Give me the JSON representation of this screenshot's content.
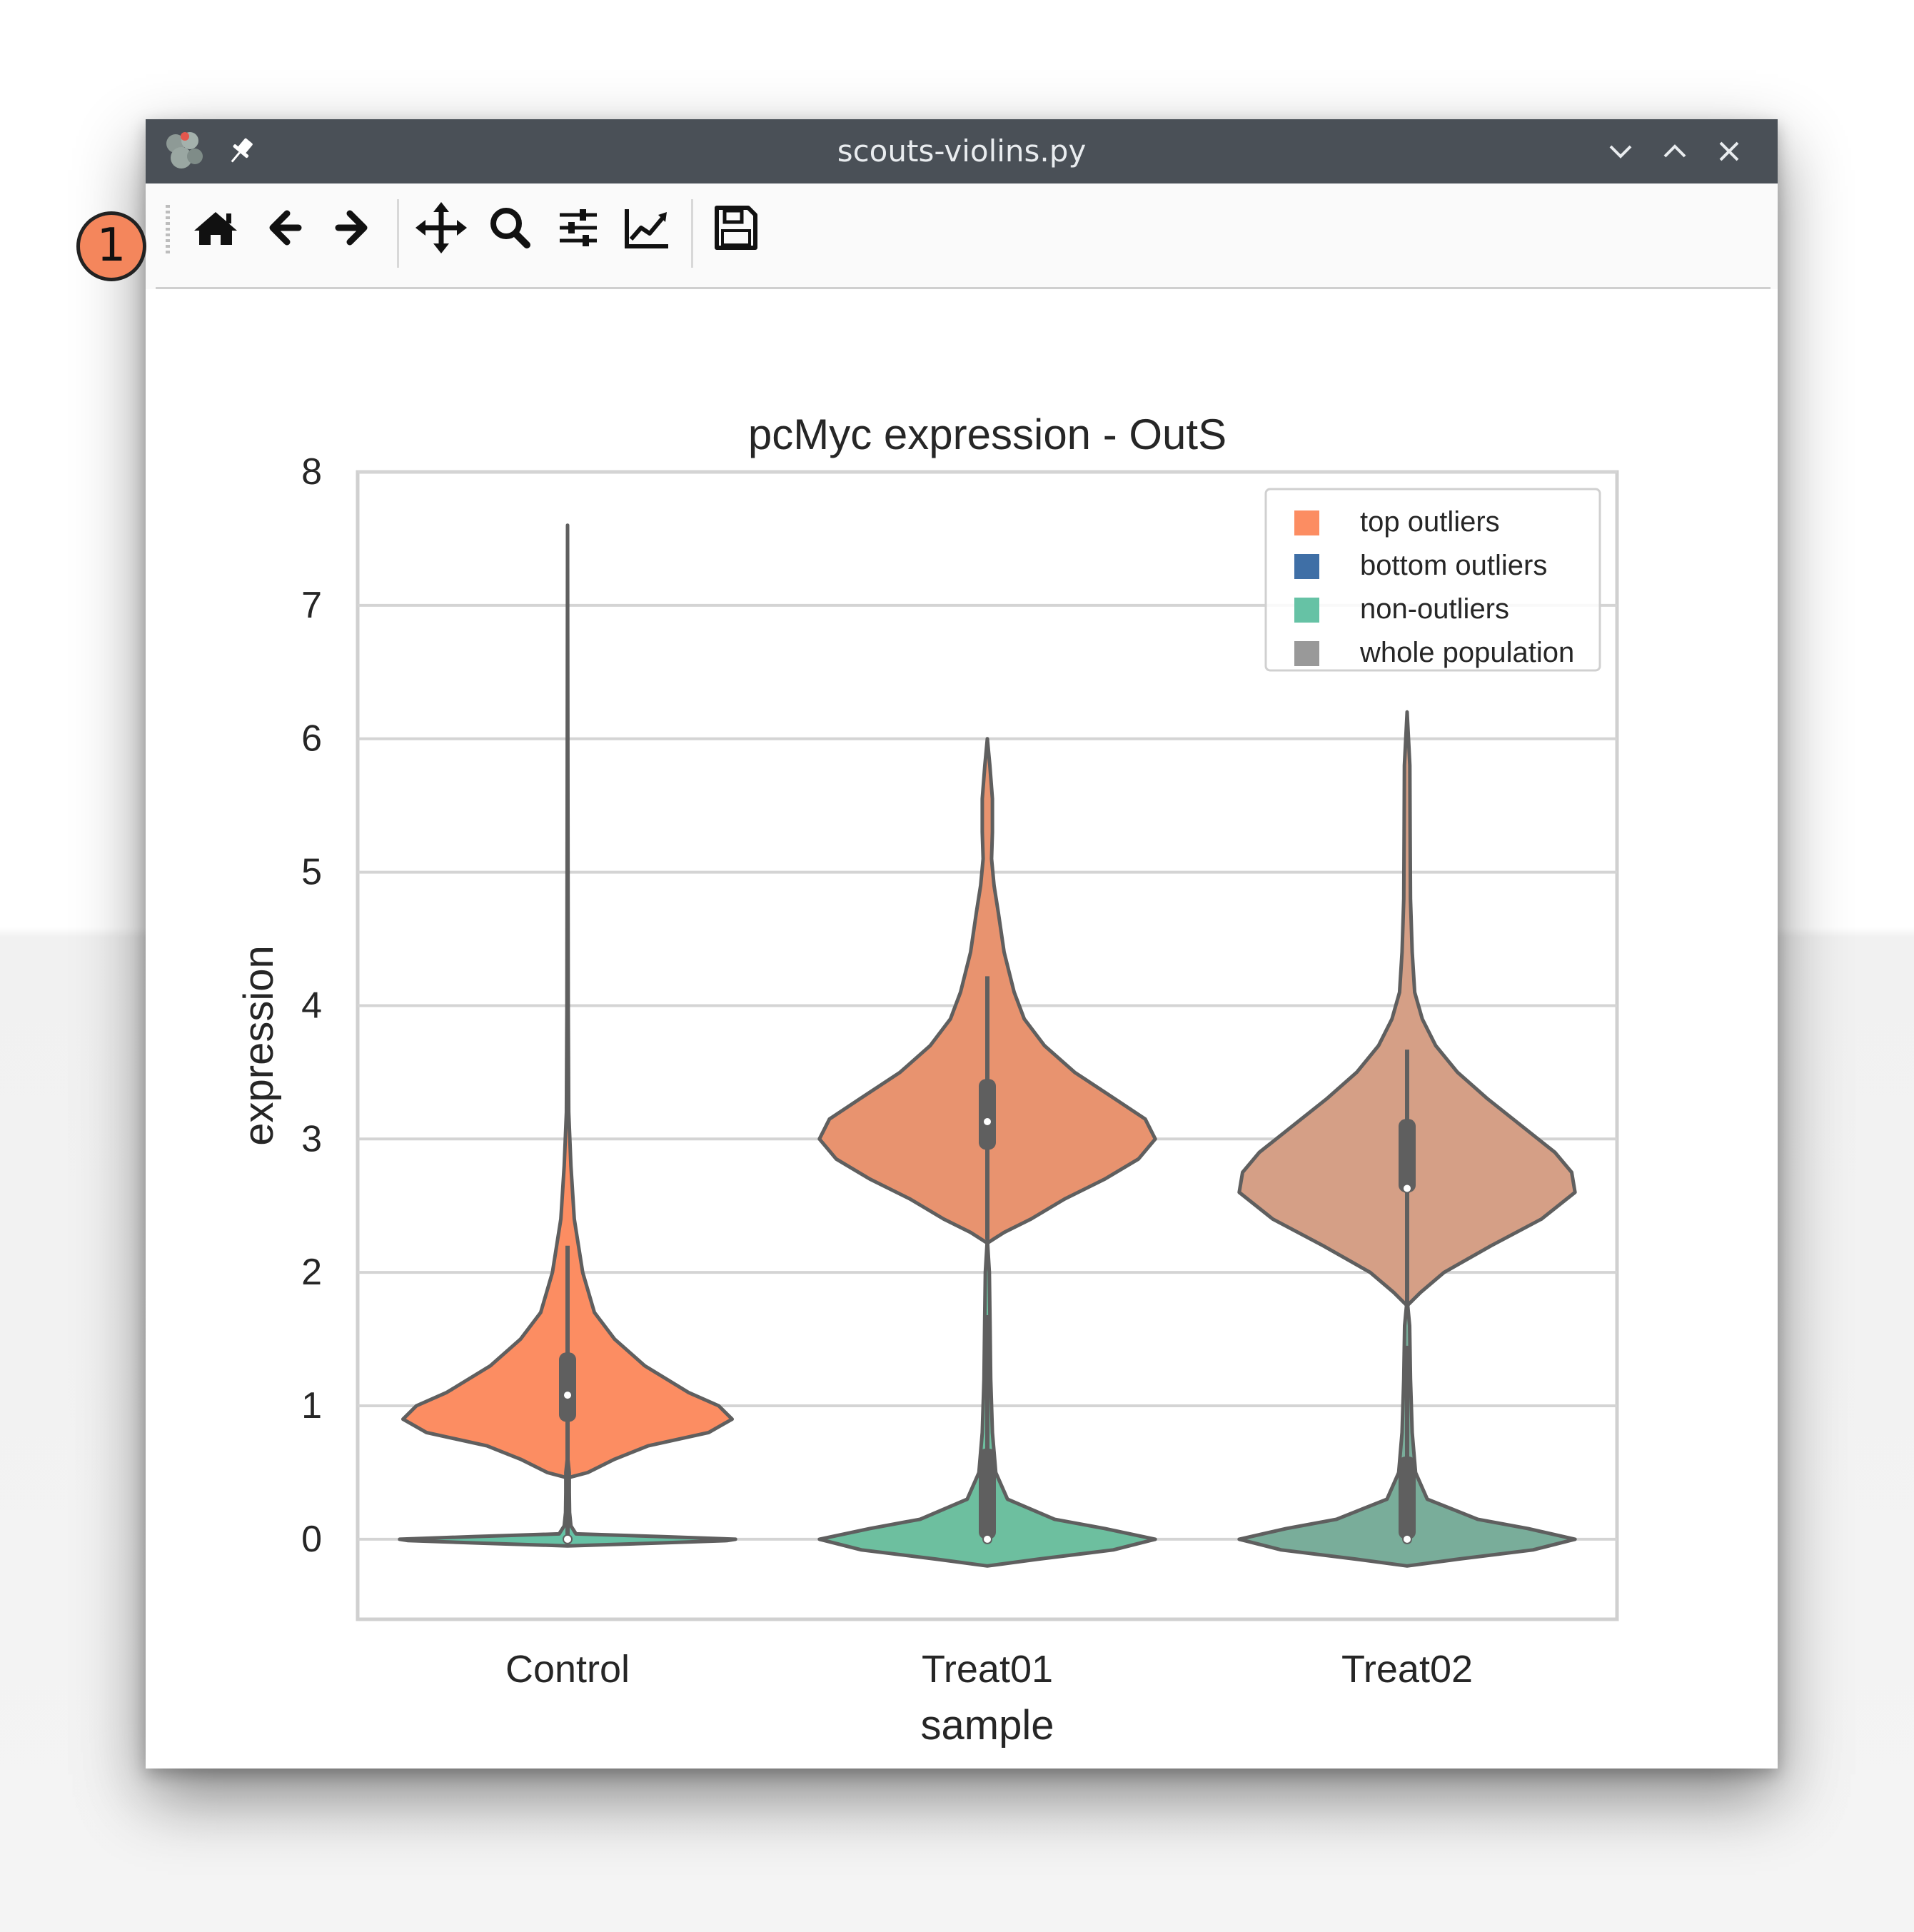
{
  "window": {
    "title": "scouts-violins.py"
  },
  "toolbar": {
    "buttons": [
      {
        "name": "home",
        "icon": "home-icon"
      },
      {
        "name": "back",
        "icon": "arrow-left-icon"
      },
      {
        "name": "forward",
        "icon": "arrow-right-icon"
      },
      {
        "name": "pan",
        "icon": "move-icon"
      },
      {
        "name": "zoom",
        "icon": "magnifier-icon"
      },
      {
        "name": "configure-subplots",
        "icon": "sliders-icon"
      },
      {
        "name": "edit-axes",
        "icon": "line-chart-icon"
      },
      {
        "name": "save",
        "icon": "floppy-disk-icon"
      }
    ]
  },
  "annotation": {
    "badge_label": "1",
    "badge_color": "#f4865c"
  },
  "chart_data": {
    "type": "violin",
    "title": "pcMyc expression - OutS",
    "xlabel": "sample",
    "ylabel": "expression",
    "categories": [
      "Control",
      "Treat01",
      "Treat02"
    ],
    "ylim": [
      -0.6,
      8
    ],
    "yticks": [
      "0",
      "1",
      "2",
      "3",
      "4",
      "5",
      "6",
      "7",
      "8"
    ],
    "grid": true,
    "legend_position": "top-right",
    "legend": [
      {
        "label": "top outliers",
        "color": "#fc8d62"
      },
      {
        "label": "bottom outliers",
        "color": "#3f6fa6"
      },
      {
        "label": "non-outliers",
        "color": "#66c2a5"
      },
      {
        "label": "whole population",
        "color": "#999999"
      }
    ],
    "violins": [
      {
        "category": "Control",
        "group": "top outliers",
        "color": "#fc8d62",
        "profile": [
          [
            0.46,
            0
          ],
          [
            0.5,
            0.12
          ],
          [
            0.6,
            0.28
          ],
          [
            0.7,
            0.48
          ],
          [
            0.8,
            0.84
          ],
          [
            0.9,
            0.98
          ],
          [
            1.0,
            0.9
          ],
          [
            1.1,
            0.72
          ],
          [
            1.3,
            0.46
          ],
          [
            1.5,
            0.28
          ],
          [
            1.7,
            0.16
          ],
          [
            2.0,
            0.09
          ],
          [
            2.4,
            0.04
          ],
          [
            2.8,
            0.02
          ],
          [
            3.2,
            0.007
          ],
          [
            4.0,
            0.004
          ],
          [
            5.5,
            0.002
          ],
          [
            7.6,
            0
          ]
        ],
        "median": 1.08,
        "q1": 0.88,
        "q3": 1.4,
        "whisker_low": 0.48,
        "whisker_high": 2.2
      },
      {
        "category": "Control",
        "group": "non-outliers",
        "color": "#66c2a5",
        "profile": [
          [
            -0.05,
            0
          ],
          [
            -0.03,
            0.5
          ],
          [
            -0.01,
            0.95
          ],
          [
            0.0,
            1.0
          ],
          [
            0.02,
            0.55
          ],
          [
            0.04,
            0.05
          ],
          [
            0.1,
            0.02
          ],
          [
            0.2,
            0.012
          ],
          [
            0.35,
            0.01
          ],
          [
            0.5,
            0.01
          ],
          [
            0.62,
            0
          ]
        ],
        "median": 0.0,
        "q1": 0.0,
        "q3": 0.0,
        "whisker_low": 0.0,
        "whisker_high": 0.6
      },
      {
        "category": "Treat01",
        "group": "top outliers",
        "color": "#e8936f",
        "profile": [
          [
            2.22,
            0
          ],
          [
            2.3,
            0.1
          ],
          [
            2.4,
            0.26
          ],
          [
            2.55,
            0.46
          ],
          [
            2.7,
            0.7
          ],
          [
            2.85,
            0.9
          ],
          [
            3.0,
            1.0
          ],
          [
            3.15,
            0.94
          ],
          [
            3.3,
            0.76
          ],
          [
            3.5,
            0.52
          ],
          [
            3.7,
            0.34
          ],
          [
            3.9,
            0.22
          ],
          [
            4.1,
            0.16
          ],
          [
            4.4,
            0.1
          ],
          [
            4.7,
            0.065
          ],
          [
            4.9,
            0.04
          ],
          [
            5.1,
            0.025
          ],
          [
            5.3,
            0.03
          ],
          [
            5.55,
            0.03
          ],
          [
            5.8,
            0.015
          ],
          [
            6.0,
            0
          ]
        ],
        "median": 3.13,
        "q1": 2.92,
        "q3": 3.45,
        "whisker_low": 2.25,
        "whisker_high": 4.22
      },
      {
        "category": "Treat01",
        "group": "non-outliers",
        "color": "#6dbf9f",
        "profile": [
          [
            -0.2,
            0
          ],
          [
            -0.15,
            0.3
          ],
          [
            -0.08,
            0.75
          ],
          [
            0.0,
            1.0
          ],
          [
            0.08,
            0.7
          ],
          [
            0.15,
            0.4
          ],
          [
            0.3,
            0.12
          ],
          [
            0.5,
            0.05
          ],
          [
            0.8,
            0.03
          ],
          [
            1.2,
            0.02
          ],
          [
            1.6,
            0.016
          ],
          [
            2.0,
            0.012
          ],
          [
            2.25,
            0
          ]
        ],
        "median": 0.0,
        "q1": 0.0,
        "q3": 0.68,
        "whisker_low": 0.0,
        "whisker_high": 1.68
      },
      {
        "category": "Treat02",
        "group": "top outliers",
        "color": "#d59f86",
        "profile": [
          [
            1.75,
            0
          ],
          [
            1.85,
            0.08
          ],
          [
            2.0,
            0.22
          ],
          [
            2.2,
            0.5
          ],
          [
            2.4,
            0.8
          ],
          [
            2.6,
            1.0
          ],
          [
            2.75,
            0.98
          ],
          [
            2.9,
            0.88
          ],
          [
            3.1,
            0.68
          ],
          [
            3.3,
            0.48
          ],
          [
            3.5,
            0.3
          ],
          [
            3.7,
            0.17
          ],
          [
            3.9,
            0.09
          ],
          [
            4.1,
            0.045
          ],
          [
            4.4,
            0.03
          ],
          [
            4.8,
            0.02
          ],
          [
            5.3,
            0.018
          ],
          [
            5.8,
            0.016
          ],
          [
            6.2,
            0
          ]
        ],
        "median": 2.63,
        "q1": 2.6,
        "q3": 3.15,
        "whisker_low": 1.78,
        "whisker_high": 3.67
      },
      {
        "category": "Treat02",
        "group": "non-outliers",
        "color": "#79ad9a",
        "profile": [
          [
            -0.2,
            0
          ],
          [
            -0.15,
            0.3
          ],
          [
            -0.08,
            0.75
          ],
          [
            0.0,
            1.0
          ],
          [
            0.08,
            0.72
          ],
          [
            0.15,
            0.42
          ],
          [
            0.3,
            0.12
          ],
          [
            0.5,
            0.05
          ],
          [
            0.8,
            0.03
          ],
          [
            1.2,
            0.02
          ],
          [
            1.6,
            0.015
          ],
          [
            1.8,
            0
          ]
        ],
        "median": 0.0,
        "q1": 0.0,
        "q3": 0.62,
        "whisker_low": 0.0,
        "whisker_high": 1.45
      }
    ]
  }
}
